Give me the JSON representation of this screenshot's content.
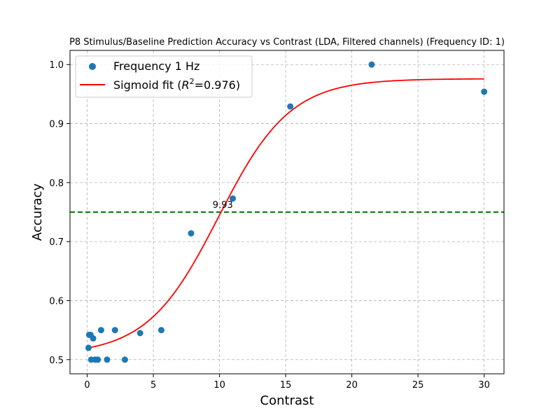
{
  "chart_data": {
    "type": "scatter",
    "title": "P8 Stimulus/Baseline Prediction Accuracy vs Contrast (LDA, Filtered channels) (Frequency ID: 1)",
    "xlabel": "Contrast",
    "ylabel": "Accuracy",
    "xlim": [
      -1.3,
      31.5
    ],
    "ylim": [
      0.476,
      1.024
    ],
    "xticks": [
      0,
      5,
      10,
      15,
      20,
      25,
      30
    ],
    "yticks": [
      0.5,
      0.6,
      0.7,
      0.8,
      0.9,
      1.0
    ],
    "ytick_labels": [
      "0.5",
      "0.6",
      "0.7",
      "0.8",
      "0.9",
      "1.0"
    ],
    "grid": true,
    "legend_position": "upper-left",
    "series": [
      {
        "name": "Frequency 1 Hz",
        "kind": "scatter",
        "color": "#1f77b4",
        "x": [
          0.1,
          0.15,
          0.25,
          0.3,
          0.45,
          0.6,
          0.8,
          1.05,
          1.5,
          2.1,
          2.85,
          4.0,
          5.6,
          7.85,
          11.0,
          15.35,
          21.5,
          30.0
        ],
        "y": [
          0.52,
          0.542,
          0.542,
          0.5,
          0.536,
          0.5,
          0.5,
          0.55,
          0.5,
          0.55,
          0.5,
          0.545,
          0.55,
          0.714,
          0.773,
          0.929,
          1.0,
          0.954
        ]
      },
      {
        "name": "Sigmoid fit",
        "legend_label_pre": "Sigmoid fit (",
        "legend_label_r": "R",
        "legend_label_sup": "2",
        "legend_label_post": "=0.976)",
        "kind": "line",
        "color": "#ff0000",
        "params": {
          "bottom": 0.508,
          "top": 0.976,
          "x0": 9.93,
          "k": 0.37
        },
        "x_range": [
          0.0,
          30.0
        ]
      }
    ],
    "threshold": {
      "y": 0.75,
      "color": "#008000",
      "style": "dashed"
    },
    "annotations": [
      {
        "text": "9.93",
        "x": 9.93,
        "y": 0.75
      }
    ]
  }
}
